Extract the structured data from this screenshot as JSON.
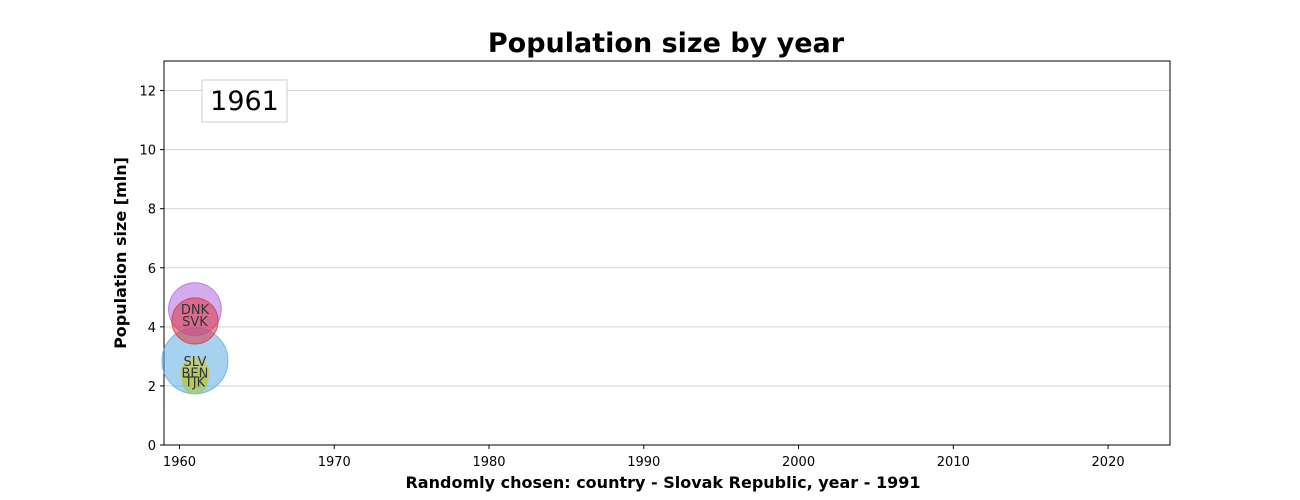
{
  "chart_data": {
    "type": "scatter",
    "title": "Population size by year",
    "xlabel": "Randomly chosen: country - Slovak Republic, year - 1991",
    "ylabel": "Population size [mln]",
    "xlim": [
      1959,
      2024
    ],
    "ylim": [
      0,
      13
    ],
    "xticks": [
      1960,
      1970,
      1980,
      1990,
      2000,
      2010,
      2020
    ],
    "yticks": [
      0,
      2,
      4,
      6,
      8,
      10,
      12
    ],
    "grid": "horizontal",
    "year_annotation": "1961",
    "points": [
      {
        "label": "SLV",
        "x": 1961,
        "y": 2.85,
        "color": "#5dade2",
        "size": 3
      },
      {
        "label": "DNK",
        "x": 1961,
        "y": 4.6,
        "color": "#b36ae2",
        "size": 2.4
      },
      {
        "label": "SVK",
        "x": 1961,
        "y": 4.2,
        "color": "#d9363e",
        "size": 2.1
      },
      {
        "label": "BEN",
        "x": 1961,
        "y": 2.45,
        "color": "#d4ca3a",
        "size": 1.3
      },
      {
        "label": "TJK",
        "x": 1961,
        "y": 2.15,
        "color": "#a8c93a",
        "size": 1.1
      }
    ]
  }
}
